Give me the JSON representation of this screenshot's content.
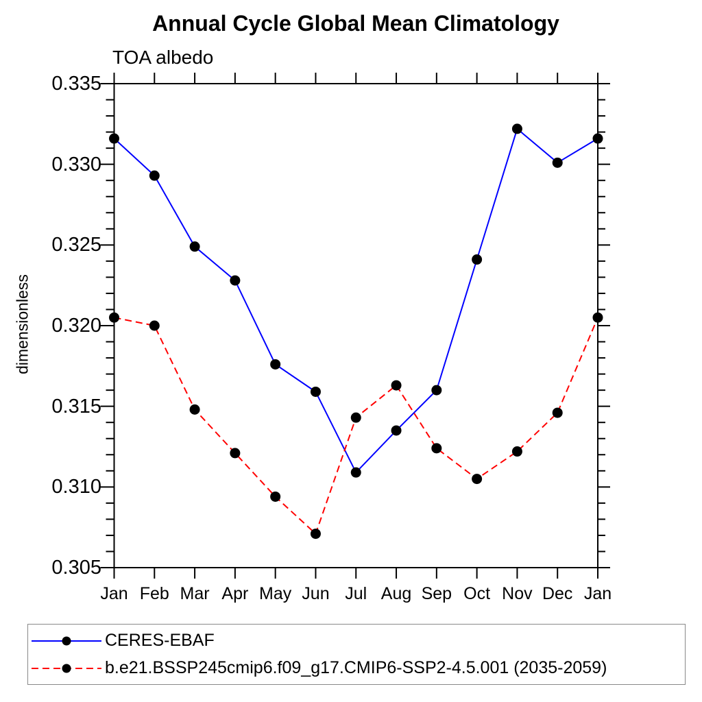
{
  "title": "Annual Cycle Global Mean Climatology",
  "subtitle": "TOA albedo",
  "y_axis_label": "dimensionless",
  "chart_data": {
    "type": "line",
    "title": "Annual Cycle Global Mean Climatology",
    "subtitle": "TOA albedo",
    "ylabel": "dimensionless",
    "xlabel": "",
    "categories": [
      "Jan",
      "Feb",
      "Mar",
      "Apr",
      "May",
      "Jun",
      "Jul",
      "Aug",
      "Sep",
      "Oct",
      "Nov",
      "Dec",
      "Jan"
    ],
    "ylim": [
      0.305,
      0.335
    ],
    "ytick_step": 0.005,
    "yminor_step": 0.001,
    "ytick_labels": [
      "0.305",
      "0.310",
      "0.315",
      "0.320",
      "0.325",
      "0.330",
      "0.335"
    ],
    "grid": false,
    "legend_position": "bottom-box",
    "series": [
      {
        "name": "CERES-EBAF",
        "line_style": "solid",
        "color": "#0000ff",
        "marker": "filled-circle",
        "marker_color": "#000000",
        "values": [
          0.3316,
          0.3293,
          0.3249,
          0.3228,
          0.3176,
          0.3159,
          0.3109,
          0.3135,
          0.316,
          0.3241,
          0.3322,
          0.3301,
          0.3316
        ]
      },
      {
        "name": "b.e21.BSSP245cmip6.f09_g17.CMIP6-SSP2-4.5.001 (2035-2059)",
        "line_style": "dashed",
        "color": "#ff0000",
        "marker": "filled-circle",
        "marker_color": "#000000",
        "values": [
          0.3205,
          0.32,
          0.3148,
          0.3121,
          0.3094,
          0.3071,
          0.3143,
          0.3163,
          0.3124,
          0.3105,
          0.3122,
          0.3146,
          0.3205
        ]
      }
    ]
  },
  "colors": {
    "background": "#ffffff",
    "axis": "#000000",
    "text": "#000000",
    "legend_border": "#888888"
  }
}
